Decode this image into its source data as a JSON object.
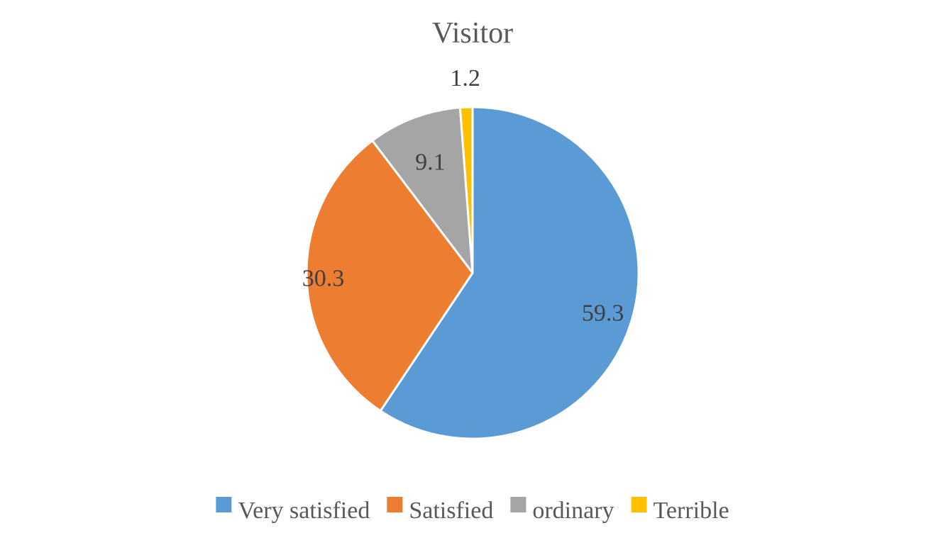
{
  "chart_data": {
    "type": "pie",
    "title": "Visitor",
    "legend_position": "bottom",
    "start_angle_deg": 0,
    "direction": "clockwise",
    "slices": [
      {
        "label": "Very satisfied",
        "value": 59.3,
        "color": "#5B9BD5"
      },
      {
        "label": "Satisfied",
        "value": 30.3,
        "color": "#ED7D31"
      },
      {
        "label": "ordinary",
        "value": 9.1,
        "color": "#A5A5A5"
      },
      {
        "label": "Terrible",
        "value": 1.2,
        "color": "#FFC000"
      }
    ],
    "data_labels": [
      "59.3",
      "30.3",
      "9.1",
      "1.2"
    ]
  }
}
